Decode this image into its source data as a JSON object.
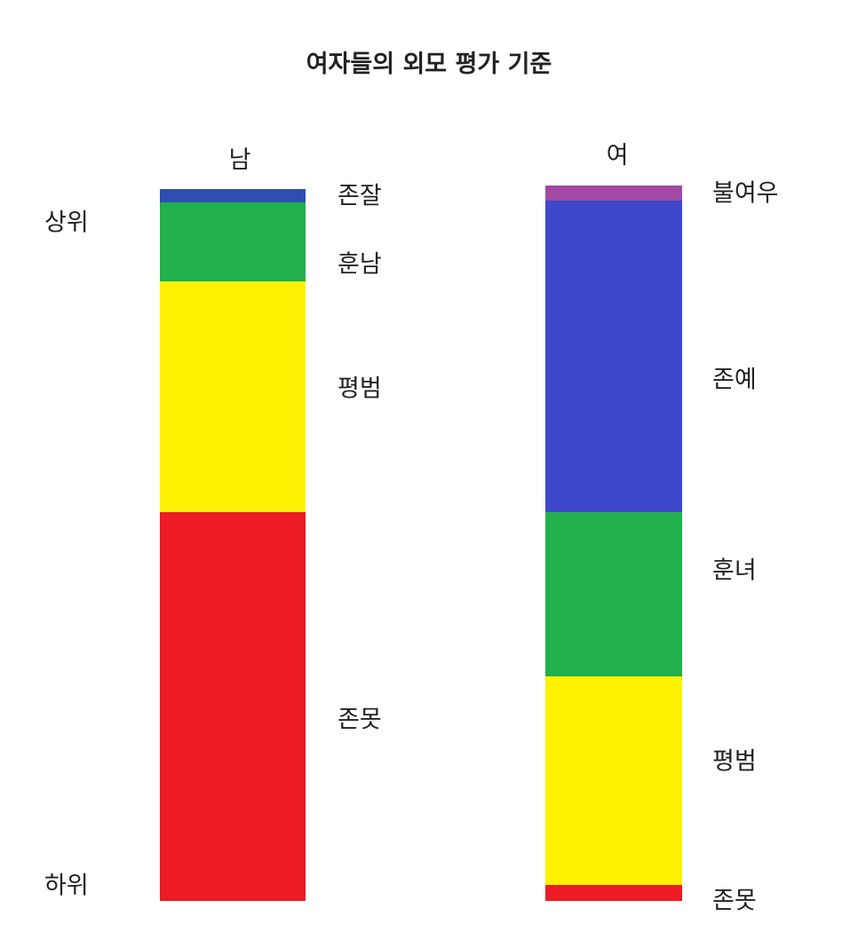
{
  "chart_data": {
    "type": "bar",
    "stacked": true,
    "title": "여자들의 외모 평가 기준",
    "axis_labels": {
      "top": "상위",
      "bottom": "하위"
    },
    "bars": [
      {
        "name": "남",
        "segments": [
          {
            "label": "존잘",
            "share_pct": 1.9,
            "color": "#2f4fb0"
          },
          {
            "label": "훈남",
            "share_pct": 11.1,
            "color": "#22b14c"
          },
          {
            "label": "평범",
            "share_pct": 32.4,
            "color": "#fff200"
          },
          {
            "label": "존못",
            "share_pct": 54.6,
            "color": "#ed1c24"
          }
        ]
      },
      {
        "name": "여",
        "segments": [
          {
            "label": "불여우",
            "share_pct": 2.1,
            "color": "#a349a4"
          },
          {
            "label": "존예",
            "share_pct": 43.5,
            "color": "#3f48cc"
          },
          {
            "label": "훈녀",
            "share_pct": 23.0,
            "color": "#22b14c"
          },
          {
            "label": "평범",
            "share_pct": 29.2,
            "color": "#fff200"
          },
          {
            "label": "존못",
            "share_pct": 2.2,
            "color": "#ed1c24"
          }
        ]
      }
    ]
  }
}
